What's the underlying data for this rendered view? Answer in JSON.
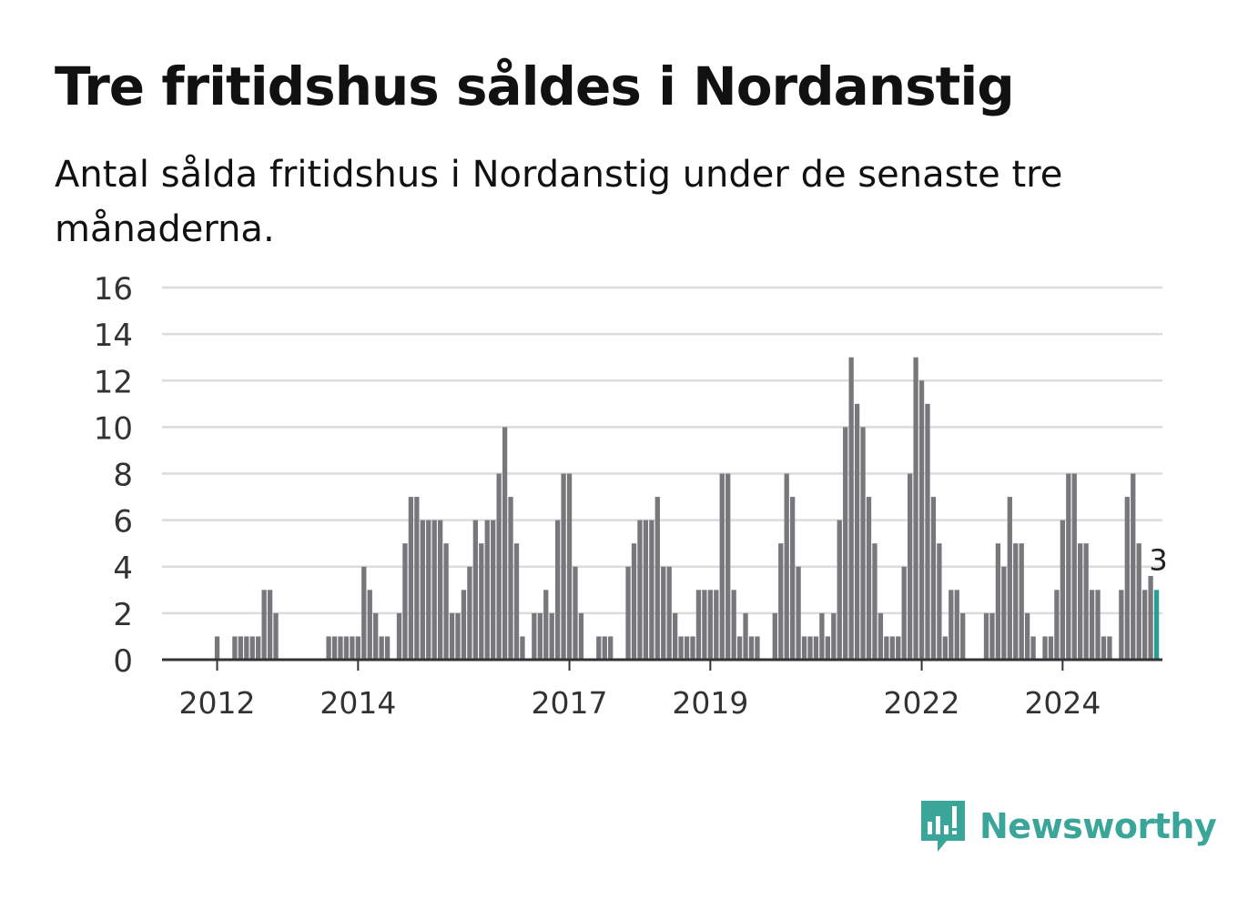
{
  "title": "Tre fritidshus såldes i Nordanstig",
  "subtitle": "Antal sålda fritidshus i Nordanstig under de senaste tre månaderna.",
  "brand": {
    "name": "Newsworthy",
    "icon": "newsworthy-logo-icon",
    "color": "#3aa699"
  },
  "chart_data": {
    "type": "bar",
    "title": "Tre fritidshus såldes i Nordanstig",
    "subtitle": "Antal sålda fritidshus i Nordanstig under de senaste tre månaderna.",
    "xlabel": "",
    "ylabel": "",
    "ylim": [
      0,
      16
    ],
    "yticks": [
      0,
      2,
      4,
      6,
      8,
      10,
      12,
      14,
      16
    ],
    "grid": true,
    "start_month": "2011-04",
    "x_ticks": [
      {
        "label": "2012",
        "month": "2012-01"
      },
      {
        "label": "2014",
        "month": "2014-01"
      },
      {
        "label": "2017",
        "month": "2017-01"
      },
      {
        "label": "2019",
        "month": "2019-01"
      },
      {
        "label": "2022",
        "month": "2022-01"
      },
      {
        "label": "2024",
        "month": "2024-01"
      }
    ],
    "bar_color": "#78787c",
    "highlight_color": "#2a9d8f",
    "highlight_label": "3",
    "values": [
      0,
      0,
      0,
      0,
      0,
      0,
      0,
      0,
      0,
      1,
      0,
      0,
      1,
      1,
      1,
      1,
      1,
      3,
      3,
      2,
      0,
      0,
      0,
      0,
      0,
      0,
      0,
      0,
      1,
      1,
      1,
      1,
      1,
      1,
      4,
      3,
      2,
      1,
      1,
      0,
      2,
      5,
      7,
      7,
      6,
      6,
      6,
      6,
      5,
      2,
      2,
      3,
      4,
      6,
      5,
      6,
      6,
      8,
      10,
      7,
      5,
      1,
      0,
      2,
      2,
      3,
      2,
      6,
      8,
      8,
      4,
      2,
      0,
      0,
      1,
      1,
      1,
      0,
      0,
      4,
      5,
      6,
      6,
      6,
      7,
      4,
      4,
      2,
      1,
      1,
      1,
      3,
      3,
      3,
      3,
      8,
      8,
      3,
      1,
      2,
      1,
      1,
      0,
      0,
      2,
      5,
      8,
      7,
      4,
      1,
      1,
      1,
      2,
      1,
      2,
      6,
      10,
      13,
      11,
      10,
      7,
      5,
      2,
      1,
      1,
      1,
      4,
      8,
      13,
      12,
      11,
      7,
      5,
      1,
      3,
      3,
      2,
      0,
      0,
      0,
      2,
      2,
      5,
      4,
      7,
      5,
      5,
      2,
      1,
      0,
      1,
      1,
      3,
      6,
      8,
      8,
      5,
      5,
      3,
      3,
      1,
      1,
      0,
      3,
      7,
      8,
      5,
      3,
      3.6,
      3
    ]
  }
}
